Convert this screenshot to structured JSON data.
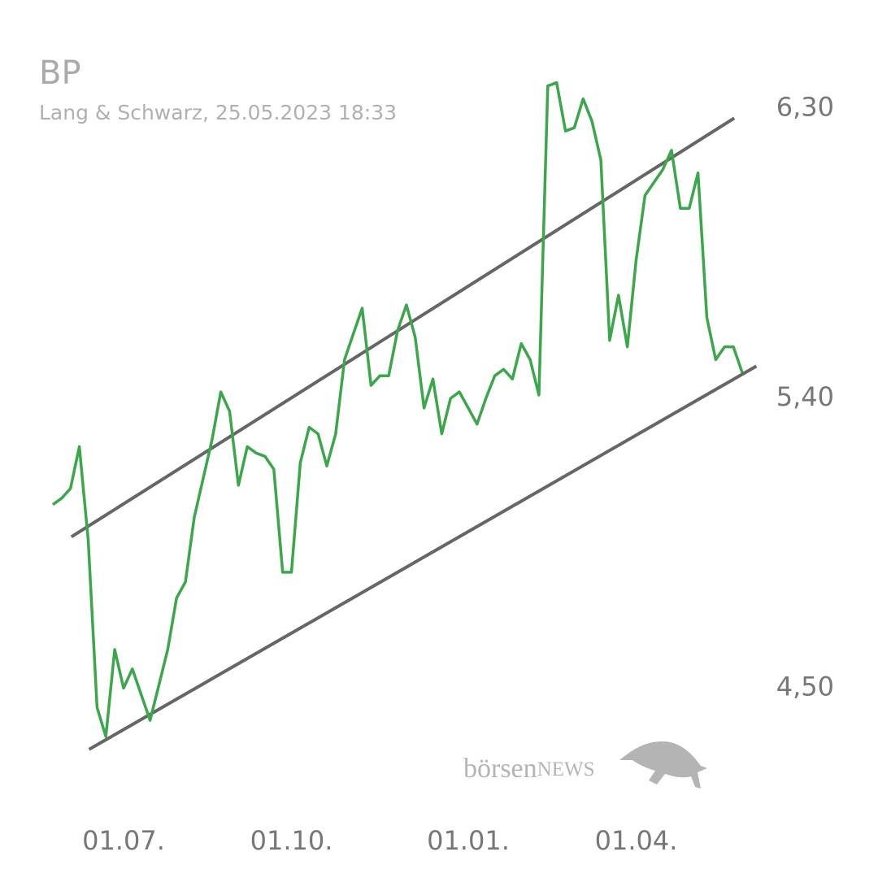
{
  "chart_data": {
    "type": "line",
    "title": "BP",
    "subtitle": "Lang & Schwarz, 25.05.2023 18:33",
    "watermark": [
      "börsen",
      "NEWS"
    ],
    "categories": [
      null,
      null,
      null,
      null,
      null,
      null,
      null,
      null,
      "01.07.",
      null,
      null,
      null,
      null,
      null,
      null,
      null,
      null,
      null,
      null,
      null,
      null,
      null,
      null,
      null,
      null,
      null,
      null,
      "01.10.",
      null,
      null,
      null,
      null,
      null,
      null,
      null,
      null,
      null,
      null,
      null,
      null,
      null,
      null,
      null,
      null,
      null,
      null,
      null,
      "01.01.",
      null,
      null,
      null,
      null,
      null,
      null,
      null,
      null,
      null,
      null,
      null,
      null,
      null,
      null,
      null,
      null,
      null,
      null,
      "01.04.",
      null,
      null,
      null,
      null,
      null,
      null,
      null,
      null,
      null,
      null,
      null,
      null
    ],
    "series": [
      {
        "color": "#3aa84a",
        "values": [
          5.07,
          5.09,
          5.12,
          5.25,
          4.96,
          4.44,
          4.35,
          4.62,
          4.5,
          4.56,
          4.48,
          4.4,
          4.51,
          4.62,
          4.78,
          4.83,
          5.03,
          5.15,
          5.27,
          5.42,
          5.36,
          5.13,
          5.25,
          5.23,
          5.22,
          5.18,
          4.86,
          4.86,
          5.2,
          5.31,
          5.29,
          5.19,
          5.29,
          5.52,
          5.6,
          5.68,
          5.44,
          5.47,
          5.47,
          5.61,
          5.69,
          5.59,
          5.37,
          5.46,
          5.29,
          5.4,
          5.42,
          5.37,
          5.32,
          5.4,
          5.47,
          5.49,
          5.46,
          5.57,
          5.52,
          5.41,
          6.37,
          6.38,
          6.23,
          6.24,
          6.33,
          6.26,
          6.14,
          5.58,
          5.72,
          5.56,
          5.83,
          6.03,
          6.07,
          6.11,
          6.17,
          5.99,
          5.99,
          6.1,
          5.65,
          5.52,
          5.56,
          5.56,
          5.48
        ]
      }
    ],
    "channel": {
      "color": "#666666",
      "upper": {
        "x": [
          2.1,
          77.1
        ],
        "values": [
          4.97,
          6.27
        ]
      },
      "lower": {
        "x": [
          4.1,
          79.6
        ],
        "values": [
          4.31,
          5.5
        ]
      }
    },
    "ylim": [
      4.1,
      6.45
    ],
    "yticks": [
      {
        "value": 4.5,
        "label": "4,50"
      },
      {
        "value": 5.4,
        "label": "5,40"
      },
      {
        "value": 6.3,
        "label": "6,30"
      }
    ],
    "grid": false
  }
}
